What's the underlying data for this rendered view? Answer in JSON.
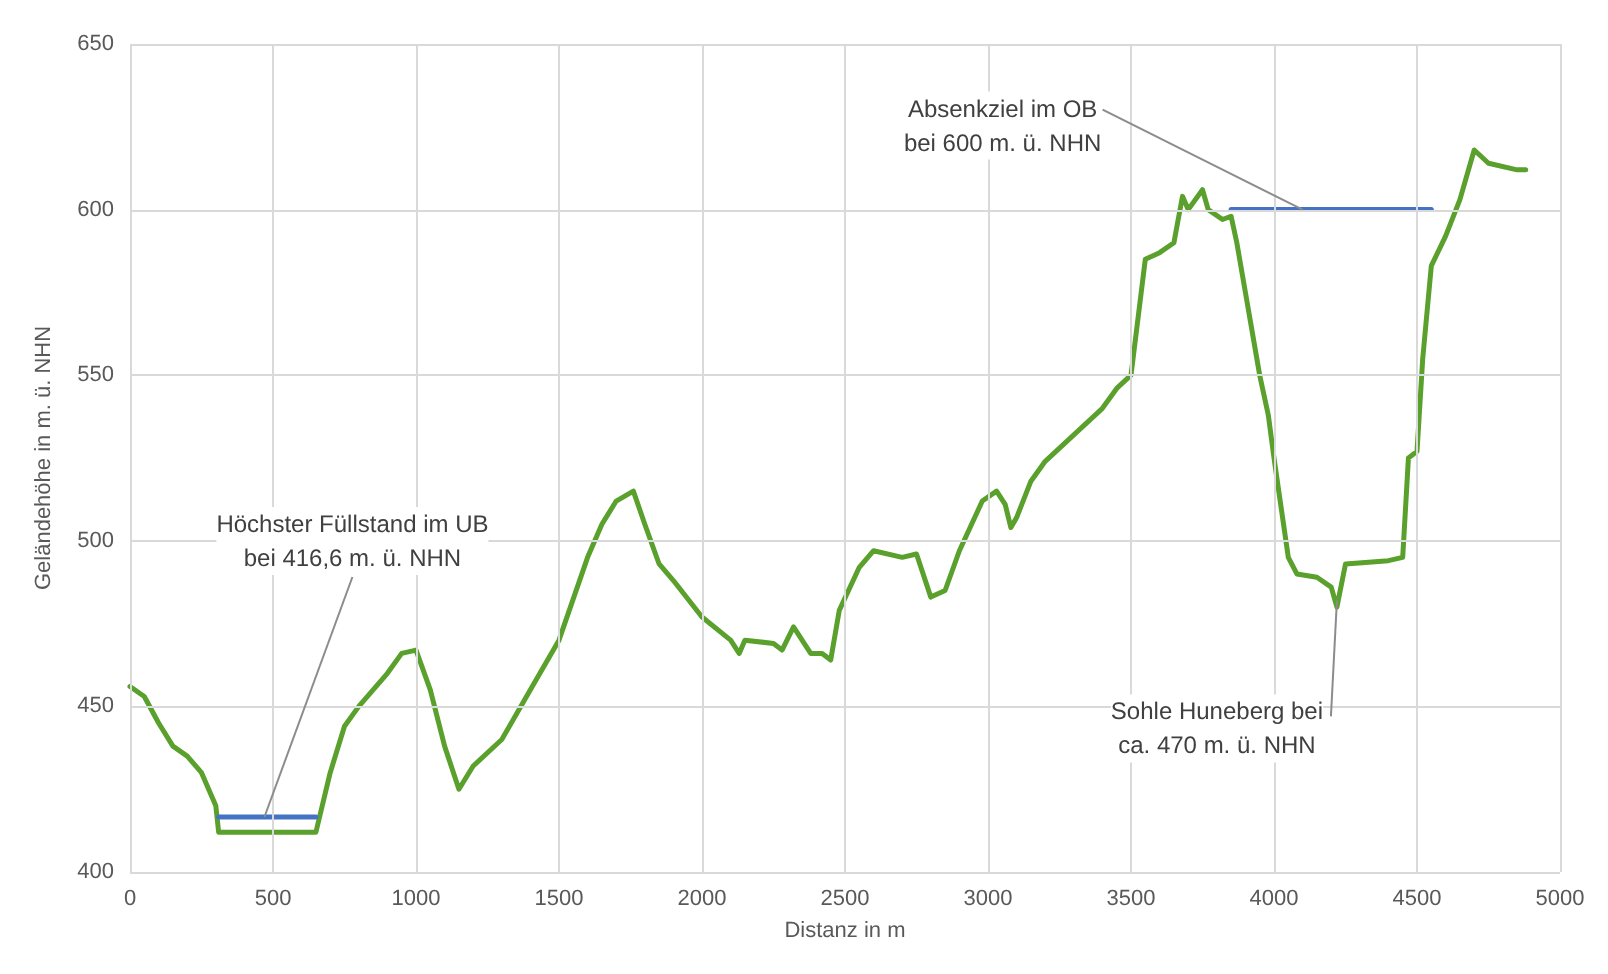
{
  "chart_data": {
    "type": "line",
    "xlabel": "Distanz in m",
    "ylabel": "Geländehöhe in m. ü. NHN",
    "xlim": [
      0,
      5000
    ],
    "xticks": [
      0,
      500,
      1000,
      1500,
      2000,
      2500,
      3000,
      3500,
      4000,
      4500,
      5000
    ],
    "ylim": [
      400,
      650
    ],
    "yticks": [
      400,
      450,
      500,
      550,
      600,
      650
    ],
    "grid": true,
    "marker": "none",
    "line_style": "solid",
    "series": [
      {
        "color": "#5aa02c",
        "x": [
          0,
          50,
          100,
          150,
          200,
          250,
          300,
          310,
          650,
          700,
          750,
          800,
          900,
          950,
          1000,
          1050,
          1100,
          1150,
          1200,
          1300,
          1400,
          1500,
          1600,
          1650,
          1700,
          1760,
          1800,
          1850,
          1900,
          2000,
          2100,
          2130,
          2150,
          2250,
          2280,
          2320,
          2380,
          2420,
          2450,
          2480,
          2550,
          2600,
          2700,
          2750,
          2800,
          2850,
          2900,
          2980,
          3030,
          3060,
          3080,
          3100,
          3150,
          3200,
          3300,
          3400,
          3450,
          3500,
          3550,
          3600,
          3650,
          3680,
          3700,
          3750,
          3770,
          3820,
          3850,
          3870,
          3900,
          3950,
          3980,
          4000,
          4050,
          4080,
          4150,
          4200,
          4220,
          4250,
          4400,
          4450,
          4470,
          4500,
          4520,
          4550,
          4600,
          4650,
          4700,
          4750,
          4850,
          4880
        ],
        "values": [
          456,
          453,
          445,
          438,
          435,
          430,
          420,
          412,
          412,
          430,
          444,
          450,
          460,
          466,
          467,
          455,
          438,
          425,
          432,
          440,
          455,
          470,
          495,
          505,
          512,
          515,
          505,
          493,
          488,
          477,
          470,
          466,
          470,
          469,
          467,
          474,
          466,
          466,
          464,
          479,
          492,
          497,
          495,
          496,
          483,
          485,
          497,
          512,
          515,
          511,
          504,
          507,
          518,
          524,
          532,
          540,
          546,
          550,
          585,
          587,
          590,
          604,
          600,
          606,
          600,
          597,
          598,
          590,
          575,
          550,
          538,
          525,
          495,
          490,
          489,
          486,
          480,
          493,
          494,
          495,
          525,
          527,
          555,
          583,
          592,
          603,
          618,
          614,
          612,
          612
        ]
      },
      {
        "color": "#4472c4",
        "x": [
          310,
          650
        ],
        "values": [
          416.6,
          416.6
        ]
      },
      {
        "color": "#4472c4",
        "x": [
          3850,
          4550
        ],
        "values": [
          600,
          600
        ]
      }
    ],
    "annotations": [
      {
        "text": "Höchster Füllstand im UB\nbei 416,6 m. ü. NHN",
        "x": 470,
        "y": 416.6
      },
      {
        "text": "Absenkziel im OB\nbei 600 m. ü. NHN",
        "x": 4100,
        "y": 600
      },
      {
        "text": "Sohle Huneberg bei\nca. 470 m. ü. NHN",
        "x": 4220,
        "y": 482
      }
    ]
  }
}
